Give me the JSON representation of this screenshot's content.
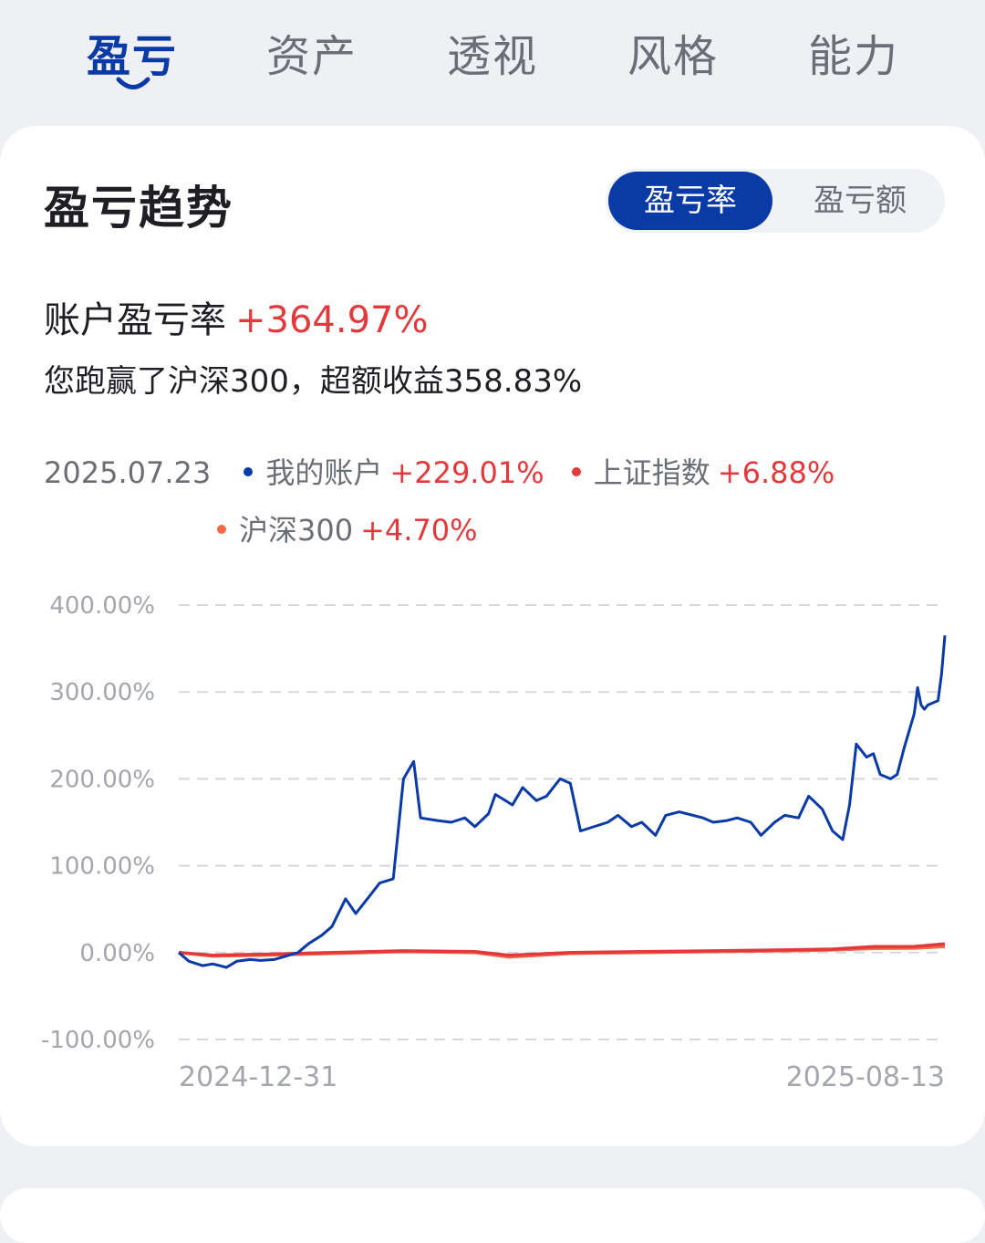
{
  "tabs": [
    {
      "label": "盈亏",
      "active": true
    },
    {
      "label": "资产",
      "active": false
    },
    {
      "label": "透视",
      "active": false
    },
    {
      "label": "风格",
      "active": false
    },
    {
      "label": "能力",
      "active": false
    }
  ],
  "card": {
    "title": "盈亏趋势",
    "toggle": {
      "selected": "盈亏率",
      "other": "盈亏额"
    },
    "rate_label": "账户盈亏率",
    "rate_value": "+364.97%",
    "beat_text": "您跑赢了沪深300，超额收益358.83%"
  },
  "legend": {
    "date": "2025.07.23",
    "items": [
      {
        "name": "我的账户",
        "value": "+229.01%",
        "color": "#0a3aa6"
      },
      {
        "name": "上证指数",
        "value": "+6.88%",
        "color": "#e4393c"
      },
      {
        "name": "沪深300",
        "value": "+4.70%",
        "color": "#f06a4a"
      }
    ]
  },
  "colors": {
    "accent": "#0a3aa6",
    "positive": "#e4393c",
    "grid": "#d6d8dd"
  },
  "chart_data": {
    "type": "line",
    "yticks": [
      "400.00%",
      "300.00%",
      "200.00%",
      "100.00%",
      "0.00%",
      "-100.00%"
    ],
    "ylim": [
      -100,
      400
    ],
    "x_start_label": "2024-12-31",
    "x_end_label": "2025-08-13",
    "x_range": [
      "2024-12-31",
      "2025-08-13"
    ],
    "grid": true,
    "series": [
      {
        "name": "我的账户",
        "color": "#0a3aa6",
        "points": [
          [
            "2024-12-31",
            0
          ],
          [
            "2025-01-03",
            -10
          ],
          [
            "2025-01-07",
            -15
          ],
          [
            "2025-01-10",
            -13
          ],
          [
            "2025-01-14",
            -17
          ],
          [
            "2025-01-17",
            -10
          ],
          [
            "2025-01-21",
            -8
          ],
          [
            "2025-01-24",
            -9
          ],
          [
            "2025-01-28",
            -8
          ],
          [
            "2025-02-04",
            0
          ],
          [
            "2025-02-07",
            10
          ],
          [
            "2025-02-11",
            20
          ],
          [
            "2025-02-14",
            30
          ],
          [
            "2025-02-18",
            62
          ],
          [
            "2025-02-21",
            45
          ],
          [
            "2025-02-25",
            65
          ],
          [
            "2025-02-28",
            80
          ],
          [
            "2025-03-04",
            85
          ],
          [
            "2025-03-07",
            200
          ],
          [
            "2025-03-10",
            220
          ],
          [
            "2025-03-12",
            155
          ],
          [
            "2025-03-17",
            152
          ],
          [
            "2025-03-21",
            150
          ],
          [
            "2025-03-25",
            155
          ],
          [
            "2025-03-28",
            145
          ],
          [
            "2025-04-01",
            160
          ],
          [
            "2025-04-03",
            182
          ],
          [
            "2025-04-08",
            170
          ],
          [
            "2025-04-11",
            190
          ],
          [
            "2025-04-15",
            175
          ],
          [
            "2025-04-18",
            180
          ],
          [
            "2025-04-22",
            200
          ],
          [
            "2025-04-25",
            195
          ],
          [
            "2025-04-28",
            140
          ],
          [
            "2025-05-06",
            150
          ],
          [
            "2025-05-09",
            158
          ],
          [
            "2025-05-13",
            145
          ],
          [
            "2025-05-16",
            150
          ],
          [
            "2025-05-20",
            135
          ],
          [
            "2025-05-23",
            158
          ],
          [
            "2025-05-27",
            162
          ],
          [
            "2025-06-03",
            155
          ],
          [
            "2025-06-06",
            150
          ],
          [
            "2025-06-10",
            152
          ],
          [
            "2025-06-13",
            155
          ],
          [
            "2025-06-17",
            150
          ],
          [
            "2025-06-20",
            135
          ],
          [
            "2025-06-24",
            150
          ],
          [
            "2025-06-27",
            158
          ],
          [
            "2025-07-01",
            155
          ],
          [
            "2025-07-04",
            180
          ],
          [
            "2025-07-08",
            165
          ],
          [
            "2025-07-11",
            140
          ],
          [
            "2025-07-14",
            130
          ],
          [
            "2025-07-16",
            170
          ],
          [
            "2025-07-18",
            240
          ],
          [
            "2025-07-21",
            225
          ],
          [
            "2025-07-23",
            229
          ],
          [
            "2025-07-25",
            205
          ],
          [
            "2025-07-28",
            200
          ],
          [
            "2025-07-30",
            205
          ],
          [
            "2025-08-01",
            235
          ],
          [
            "2025-08-04",
            275
          ],
          [
            "2025-08-05",
            305
          ],
          [
            "2025-08-06",
            285
          ],
          [
            "2025-08-07",
            280
          ],
          [
            "2025-08-08",
            285
          ],
          [
            "2025-08-11",
            290
          ],
          [
            "2025-08-12",
            320
          ],
          [
            "2025-08-13",
            365
          ]
        ]
      },
      {
        "name": "上证指数",
        "color": "#e4393c",
        "points": [
          [
            "2024-12-31",
            0
          ],
          [
            "2025-01-10",
            -3
          ],
          [
            "2025-01-24",
            -2
          ],
          [
            "2025-02-14",
            0
          ],
          [
            "2025-03-07",
            2
          ],
          [
            "2025-03-28",
            1
          ],
          [
            "2025-04-07",
            -3
          ],
          [
            "2025-04-25",
            0
          ],
          [
            "2025-05-16",
            1
          ],
          [
            "2025-06-06",
            2
          ],
          [
            "2025-06-27",
            3
          ],
          [
            "2025-07-11",
            4
          ],
          [
            "2025-07-23",
            6.88
          ],
          [
            "2025-08-04",
            7
          ],
          [
            "2025-08-13",
            10
          ]
        ]
      },
      {
        "name": "沪深300",
        "color": "#f06a4a",
        "points": [
          [
            "2024-12-31",
            0
          ],
          [
            "2025-01-10",
            -4
          ],
          [
            "2025-01-24",
            -3
          ],
          [
            "2025-02-14",
            -1
          ],
          [
            "2025-03-07",
            1
          ],
          [
            "2025-03-28",
            0
          ],
          [
            "2025-04-07",
            -5
          ],
          [
            "2025-04-25",
            -1
          ],
          [
            "2025-05-16",
            0
          ],
          [
            "2025-06-06",
            1
          ],
          [
            "2025-06-27",
            2
          ],
          [
            "2025-07-11",
            3
          ],
          [
            "2025-07-23",
            4.7
          ],
          [
            "2025-08-04",
            5
          ],
          [
            "2025-08-13",
            7
          ]
        ]
      }
    ]
  }
}
